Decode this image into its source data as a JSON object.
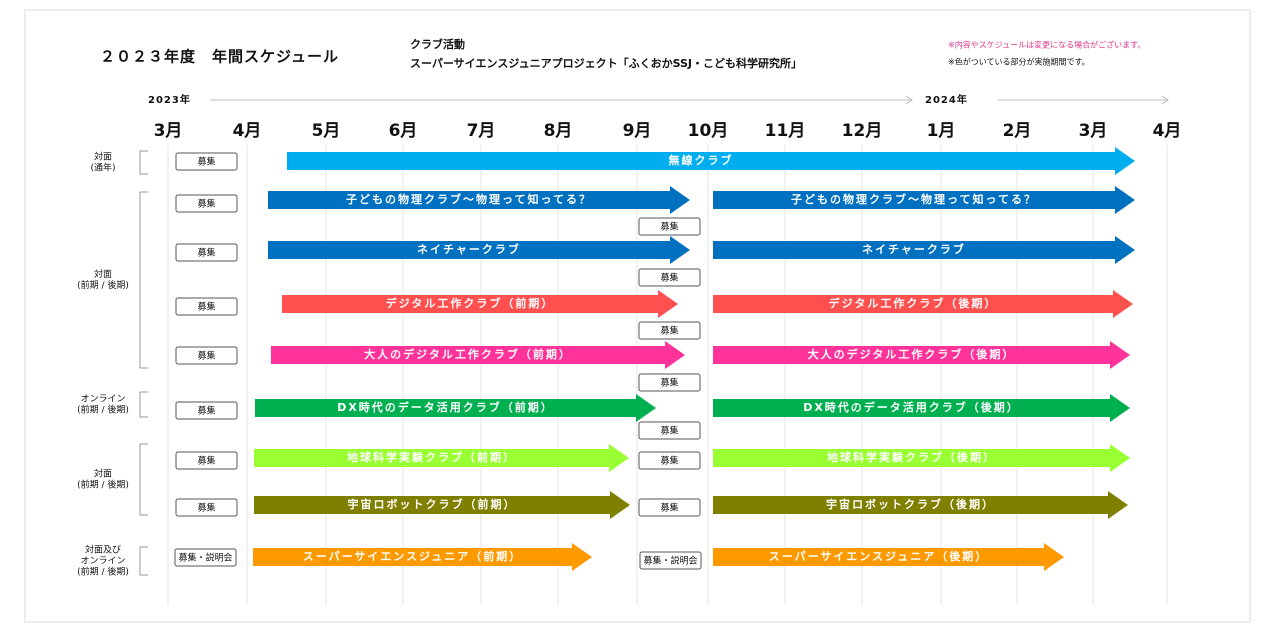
{
  "header": {
    "title": "２０２３年度　年間スケジュール",
    "subtitle_1": "クラブ活動",
    "subtitle_2": "スーパーサイエンスジュニアプロジェクト「ふくおかSSJ・こども科学研究所」",
    "note_1": "※内容やスケジュールは変更になる場合がございます。",
    "note_2": "※色がついている部分が実施期間です。"
  },
  "timeline": {
    "year_start": "2023年",
    "year_end": "2024年",
    "months": [
      "3月",
      "4月",
      "5月",
      "6月",
      "7月",
      "8月",
      "9月",
      "10月",
      "11月",
      "12月",
      "1月",
      "2月",
      "3月",
      "4月"
    ]
  },
  "groups": [
    {
      "lines": [
        "対面",
        "(通年)"
      ]
    },
    {
      "lines": [
        "対面",
        "(前期 / 後期)"
      ]
    },
    {
      "lines": [
        "オンライン",
        "(前期 / 後期)"
      ]
    },
    {
      "lines": [
        "対面",
        "(前期 / 後期)"
      ]
    },
    {
      "lines": [
        "対面及び",
        "オンライン",
        "(前期 / 後期)"
      ]
    }
  ],
  "rows": [
    {
      "labels": [
        "無線クラブ"
      ],
      "boxes": [
        "募集"
      ]
    },
    {
      "labels": [
        "子どもの物理クラブ～物理って知ってる？",
        "子どもの物理クラブ～物理って知ってる？"
      ],
      "boxes": [
        "募集",
        "募集"
      ]
    },
    {
      "labels": [
        "ネイチャークラブ",
        "ネイチャークラブ"
      ],
      "boxes": [
        "募集",
        "募集"
      ]
    },
    {
      "labels": [
        "デジタル工作クラブ（前期）",
        "デジタル工作クラブ（後期）"
      ],
      "boxes": [
        "募集",
        "募集"
      ]
    },
    {
      "labels": [
        "大人のデジタル工作クラブ（前期）",
        "大人のデジタル工作クラブ（後期）"
      ],
      "boxes": [
        "募集",
        "募集"
      ]
    },
    {
      "labels": [
        "DX時代のデータ活用クラブ（前期）",
        "DX時代のデータ活用クラブ（後期）"
      ],
      "boxes": [
        "募集",
        "募集"
      ]
    },
    {
      "labels": [
        "地球科学実験クラブ（前期）",
        "地球科学実験クラブ（後期）"
      ],
      "boxes": [
        "募集",
        "募集"
      ]
    },
    {
      "labels": [
        "宇宙ロボットクラブ（前期）",
        "宇宙ロボットクラブ（後期）"
      ],
      "boxes": [
        "募集",
        "募集"
      ]
    },
    {
      "labels": [
        "スーパーサイエンスジュニア（前期）",
        "スーパーサイエンスジュニア（後期）"
      ],
      "boxes": [
        "募集・説明会",
        "募集・説明会"
      ]
    }
  ]
}
